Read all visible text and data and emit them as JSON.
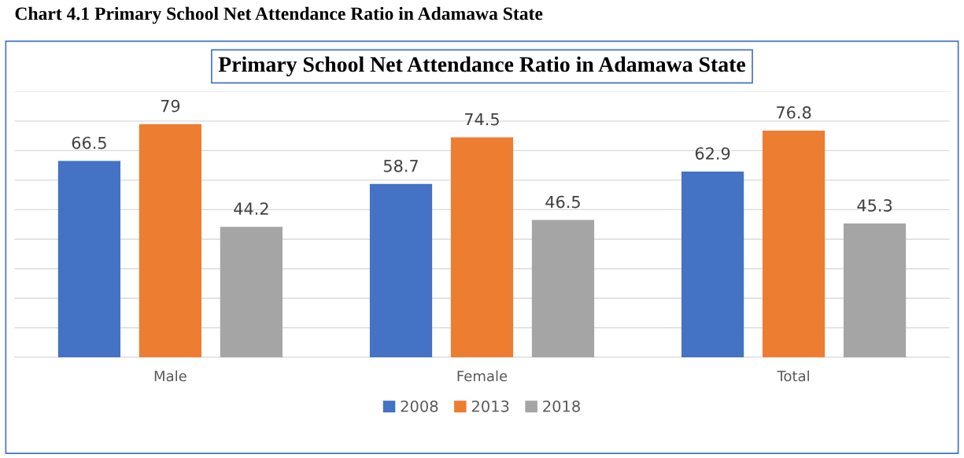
{
  "chart_data": {
    "type": "bar",
    "title": "Primary School Net Attendance Ratio in Adamawa State",
    "annotations": [
      "Chart 4.1 Primary School Net Attendance Ratio in Adamawa State"
    ],
    "categories": [
      "Male",
      "Female",
      "Total"
    ],
    "series": [
      {
        "name": "2008",
        "color": "#4472c4",
        "values": [
          66.5,
          58.7,
          62.9
        ]
      },
      {
        "name": "2013",
        "color": "#ed7d31",
        "values": [
          79,
          74.5,
          76.8
        ]
      },
      {
        "name": "2018",
        "color": "#a5a5a5",
        "values": [
          44.2,
          46.5,
          45.3
        ]
      }
    ],
    "ylim": [
      0,
      90
    ],
    "yticks": [
      {
        "value": 0,
        "label": null
      },
      {
        "value": 10,
        "label": null
      },
      {
        "value": 20,
        "label": null
      },
      {
        "value": 30,
        "label": null
      },
      {
        "value": 40,
        "label": null
      },
      {
        "value": 50,
        "label": null
      },
      {
        "value": 60,
        "label": null
      },
      {
        "value": 70,
        "label": null
      },
      {
        "value": 80,
        "label": null
      },
      {
        "value": 90,
        "label": null
      }
    ],
    "tick_labels": "x",
    "grid": "y",
    "legend": "bottom",
    "data_labels": true
  }
}
